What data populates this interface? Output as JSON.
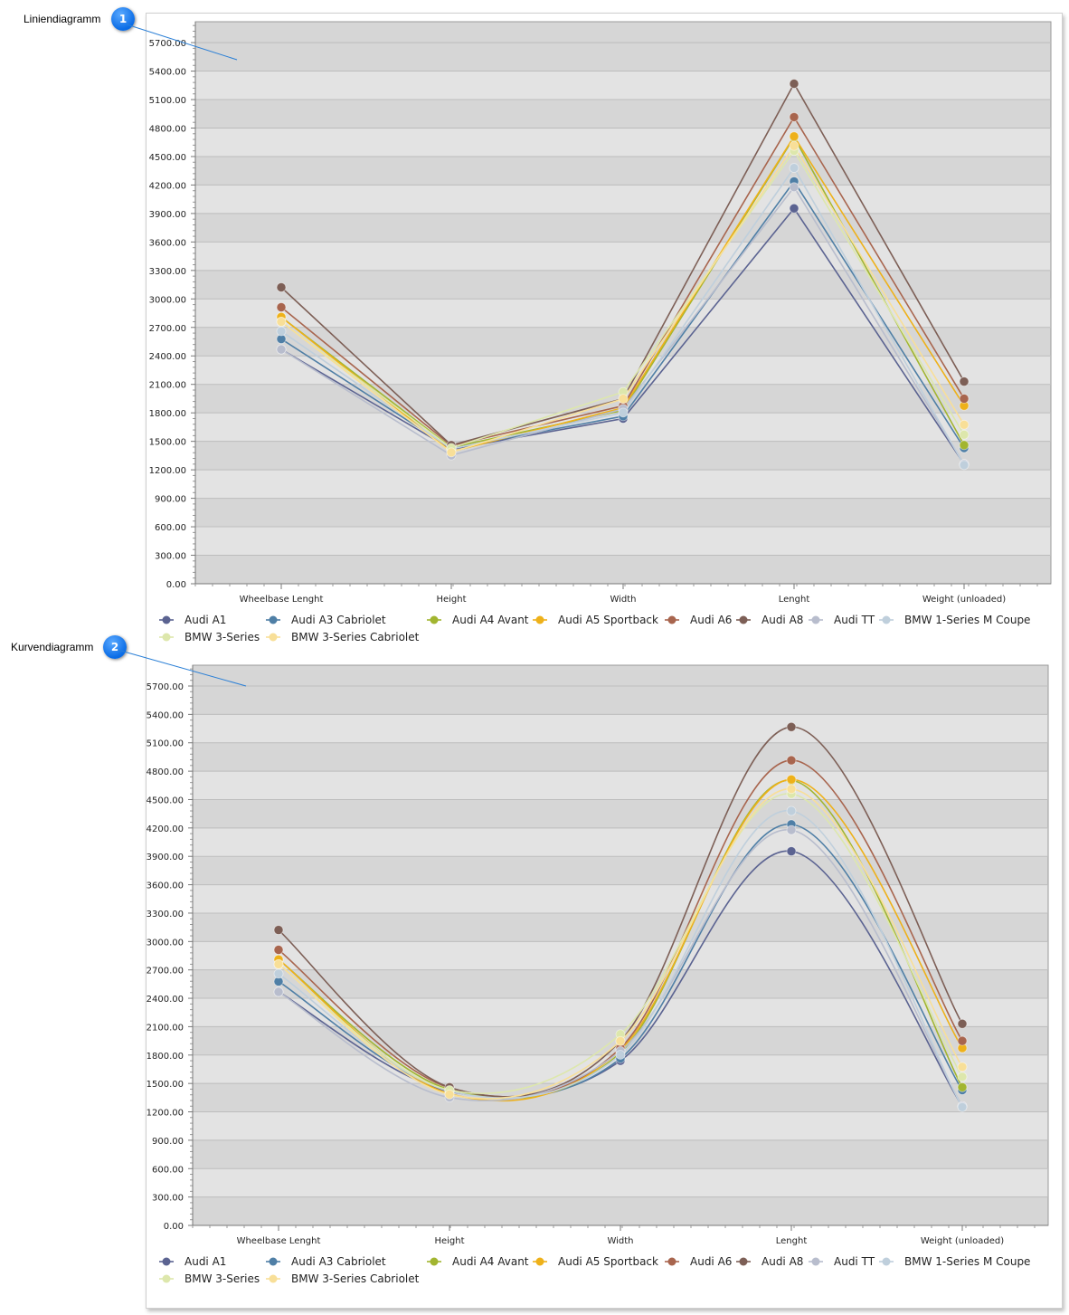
{
  "callouts": [
    {
      "label": "Liniendiagramm",
      "number": "1"
    },
    {
      "label": "Kurvendiagramm",
      "number": "2"
    }
  ],
  "series_colors": {
    "Audi A1": "#5b6391",
    "Audi A3 Cabriolet": "#4f7fa6",
    "Audi A4 Avant": "#a2b530",
    "Audi A5 Sportback": "#eeb11a",
    "Audi A6": "#a8654e",
    "Audi A8": "#7d5f56",
    "Audi TT": "#b8bdcd",
    "BMW 1-Series M Coupe": "#bfcfdc",
    "BMW 3-Series": "#dde7ac",
    "BMW 3-Series Cabriolet": "#f8df98"
  },
  "chart_data": [
    {
      "type": "line",
      "categories": [
        "Wheelbase Lenght",
        "Height",
        "Width",
        "Lenght",
        "Weight (unloaded)"
      ],
      "yticks": [
        "0.00",
        "300.00",
        "600.00",
        "900.00",
        "1200.00",
        "1500.00",
        "1800.00",
        "2100.00",
        "2400.00",
        "2700.00",
        "3000.00",
        "3300.00",
        "3600.00",
        "3900.00",
        "4200.00",
        "4500.00",
        "4800.00",
        "5100.00",
        "5400.00",
        "5700.00"
      ],
      "ylim": [
        0,
        5700
      ],
      "grid": true,
      "legend_position": "bottom",
      "series": [
        {
          "name": "Audi A1",
          "values": [
            2469,
            1416,
            1740,
            3954,
            1260
          ]
        },
        {
          "name": "Audi A3 Cabriolet",
          "values": [
            2578,
            1424,
            1765,
            4238,
            1430
          ]
        },
        {
          "name": "Audi A4 Avant",
          "values": [
            2808,
            1436,
            1826,
            4703,
            1460
          ]
        },
        {
          "name": "Audi A5 Sportback",
          "values": [
            2810,
            1391,
            1854,
            4712,
            1875
          ]
        },
        {
          "name": "Audi A6",
          "values": [
            2912,
            1455,
            1874,
            4915,
            1950
          ]
        },
        {
          "name": "Audi A8",
          "values": [
            3122,
            1460,
            1949,
            5267,
            2130
          ]
        },
        {
          "name": "Audi TT",
          "values": [
            2468,
            1352,
            1842,
            4178,
            1260
          ]
        },
        {
          "name": "BMW 1-Series M Coupe",
          "values": [
            2660,
            1420,
            1803,
            4380,
            1250
          ]
        },
        {
          "name": "BMW 3-Series",
          "values": [
            2760,
            1430,
            2020,
            4560,
            1570
          ]
        },
        {
          "name": "BMW 3-Series Cabriolet",
          "values": [
            2760,
            1384,
            1948,
            4612,
            1675
          ]
        }
      ]
    },
    {
      "type": "line",
      "smooth": true,
      "categories": [
        "Wheelbase Lenght",
        "Height",
        "Width",
        "Lenght",
        "Weight (unloaded)"
      ],
      "yticks": [
        "0.00",
        "300.00",
        "600.00",
        "900.00",
        "1200.00",
        "1500.00",
        "1800.00",
        "2100.00",
        "2400.00",
        "2700.00",
        "3000.00",
        "3300.00",
        "3600.00",
        "3900.00",
        "4200.00",
        "4500.00",
        "4800.00",
        "5100.00",
        "5400.00",
        "5700.00"
      ],
      "ylim": [
        0,
        5700
      ],
      "grid": true,
      "legend_position": "bottom",
      "series": [
        {
          "name": "Audi A1",
          "values": [
            2469,
            1416,
            1740,
            3954,
            1260
          ]
        },
        {
          "name": "Audi A3 Cabriolet",
          "values": [
            2578,
            1424,
            1765,
            4238,
            1430
          ]
        },
        {
          "name": "Audi A4 Avant",
          "values": [
            2808,
            1436,
            1826,
            4703,
            1460
          ]
        },
        {
          "name": "Audi A5 Sportback",
          "values": [
            2810,
            1391,
            1854,
            4712,
            1875
          ]
        },
        {
          "name": "Audi A6",
          "values": [
            2912,
            1455,
            1874,
            4915,
            1950
          ]
        },
        {
          "name": "Audi A8",
          "values": [
            3122,
            1460,
            1949,
            5267,
            2130
          ]
        },
        {
          "name": "Audi TT",
          "values": [
            2468,
            1352,
            1842,
            4178,
            1260
          ]
        },
        {
          "name": "BMW 1-Series M Coupe",
          "values": [
            2660,
            1420,
            1803,
            4380,
            1250
          ]
        },
        {
          "name": "BMW 3-Series",
          "values": [
            2760,
            1430,
            2020,
            4560,
            1570
          ]
        },
        {
          "name": "BMW 3-Series Cabriolet",
          "values": [
            2760,
            1384,
            1948,
            4612,
            1675
          ]
        }
      ]
    }
  ]
}
